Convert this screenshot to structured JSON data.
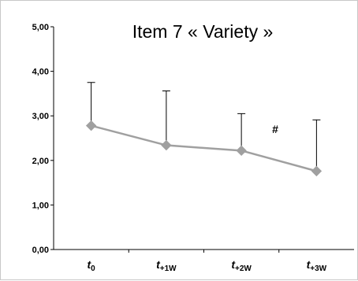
{
  "chart_data": {
    "type": "line",
    "title": "Item 7 « Variety »",
    "xlabel": "",
    "ylabel": "",
    "categories": [
      {
        "main": "t",
        "sub": "0"
      },
      {
        "main": "t",
        "sub": "+1W"
      },
      {
        "main": "t",
        "sub": "+2W"
      },
      {
        "main": "t",
        "sub": "+3W"
      }
    ],
    "series": [
      {
        "values": [
          2.78,
          2.34,
          2.22,
          1.76
        ],
        "error_upper": [
          3.75,
          3.56,
          3.05,
          2.91
        ],
        "color": "#a0a0a0",
        "marker": "diamond"
      }
    ],
    "ylim": [
      0,
      5
    ],
    "yticks": [
      "0,00",
      "1,00",
      "2,00",
      "3,00",
      "4,00",
      "5,00"
    ],
    "grid": false,
    "annotations": [
      {
        "text": "#",
        "category_index": 2.45,
        "y": 2.7
      }
    ]
  }
}
